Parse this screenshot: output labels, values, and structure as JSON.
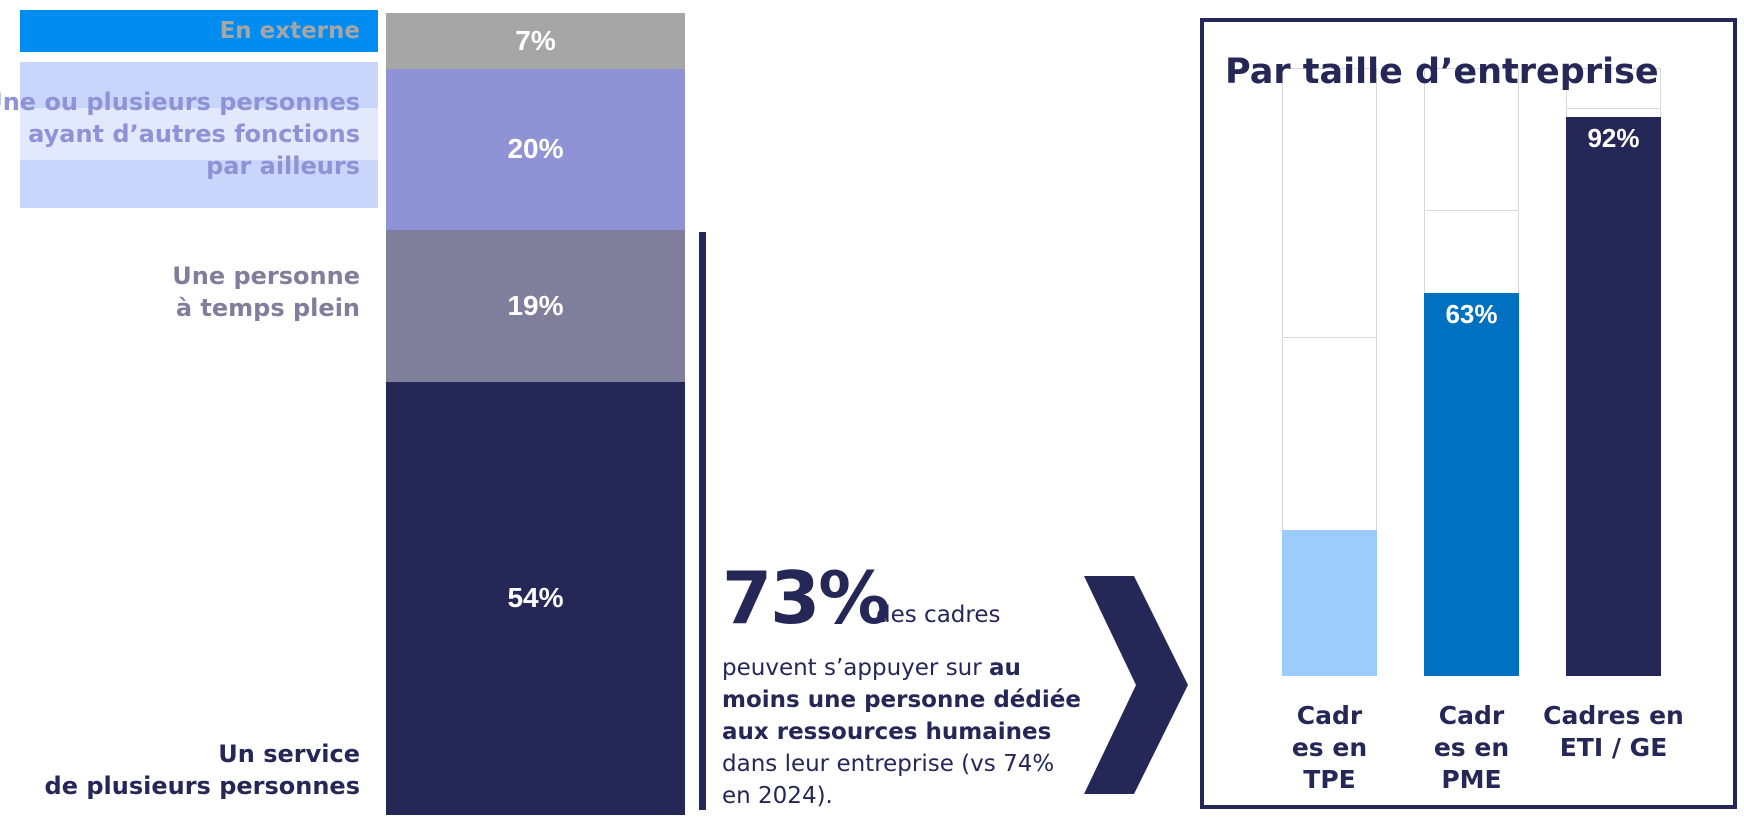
{
  "left_chart": {
    "labels": {
      "externe": "En externe",
      "autres_fonctions": [
        "Une ou plusieurs personnes",
        "ayant d’autres fonctions",
        "par ailleurs"
      ],
      "temps_plein": [
        "Une personne",
        "à temps plein"
      ],
      "service": [
        "Un service",
        "de plusieurs personnes"
      ]
    }
  },
  "highlight": {
    "big_value": "73%",
    "lead": "des cadres",
    "text_before": "peuvent s’appuyer sur",
    "text_bold": "au moins une personne dédiée aux ressources humaines",
    "text_after": "dans leur entreprise (vs 74% en 2024)."
  },
  "panel": {
    "title": "Par taille d’entreprise"
  },
  "colors": {
    "navy": "#252757",
    "slate": "#7f7f9c",
    "lavender": "#8f92d4",
    "grey": "#a6a6a6",
    "light_blue": "#9dcbfb",
    "blue": "#0070c0",
    "bright_blue": "#008cf0",
    "pale_blue": "#c9d6fc"
  },
  "chart_data": [
    {
      "type": "bar",
      "stacked": true,
      "categories": [
        ""
      ],
      "series": [
        {
          "name": "Un service de plusieurs personnes",
          "values": [
            54
          ]
        },
        {
          "name": "Une personne à temps plein",
          "values": [
            19
          ]
        },
        {
          "name": "Une ou plusieurs personnes ayant d’autres fonctions par ailleurs",
          "values": [
            20
          ]
        },
        {
          "name": "En externe",
          "values": [
            7
          ]
        }
      ],
      "data_labels": [
        "54%",
        "19%",
        "20%",
        "7%"
      ],
      "ylim": [
        0,
        100
      ]
    },
    {
      "type": "bar",
      "stacked": true,
      "title": "Par taille d’entreprise",
      "categories": [
        "Cadres en TPE",
        "Cadres en PME",
        "Cadres en ETI / GE"
      ],
      "highlight_values": [
        24,
        63,
        92
      ],
      "data_labels": [
        "",
        "63%",
        "92%"
      ],
      "ylim": [
        0,
        100
      ]
    }
  ]
}
